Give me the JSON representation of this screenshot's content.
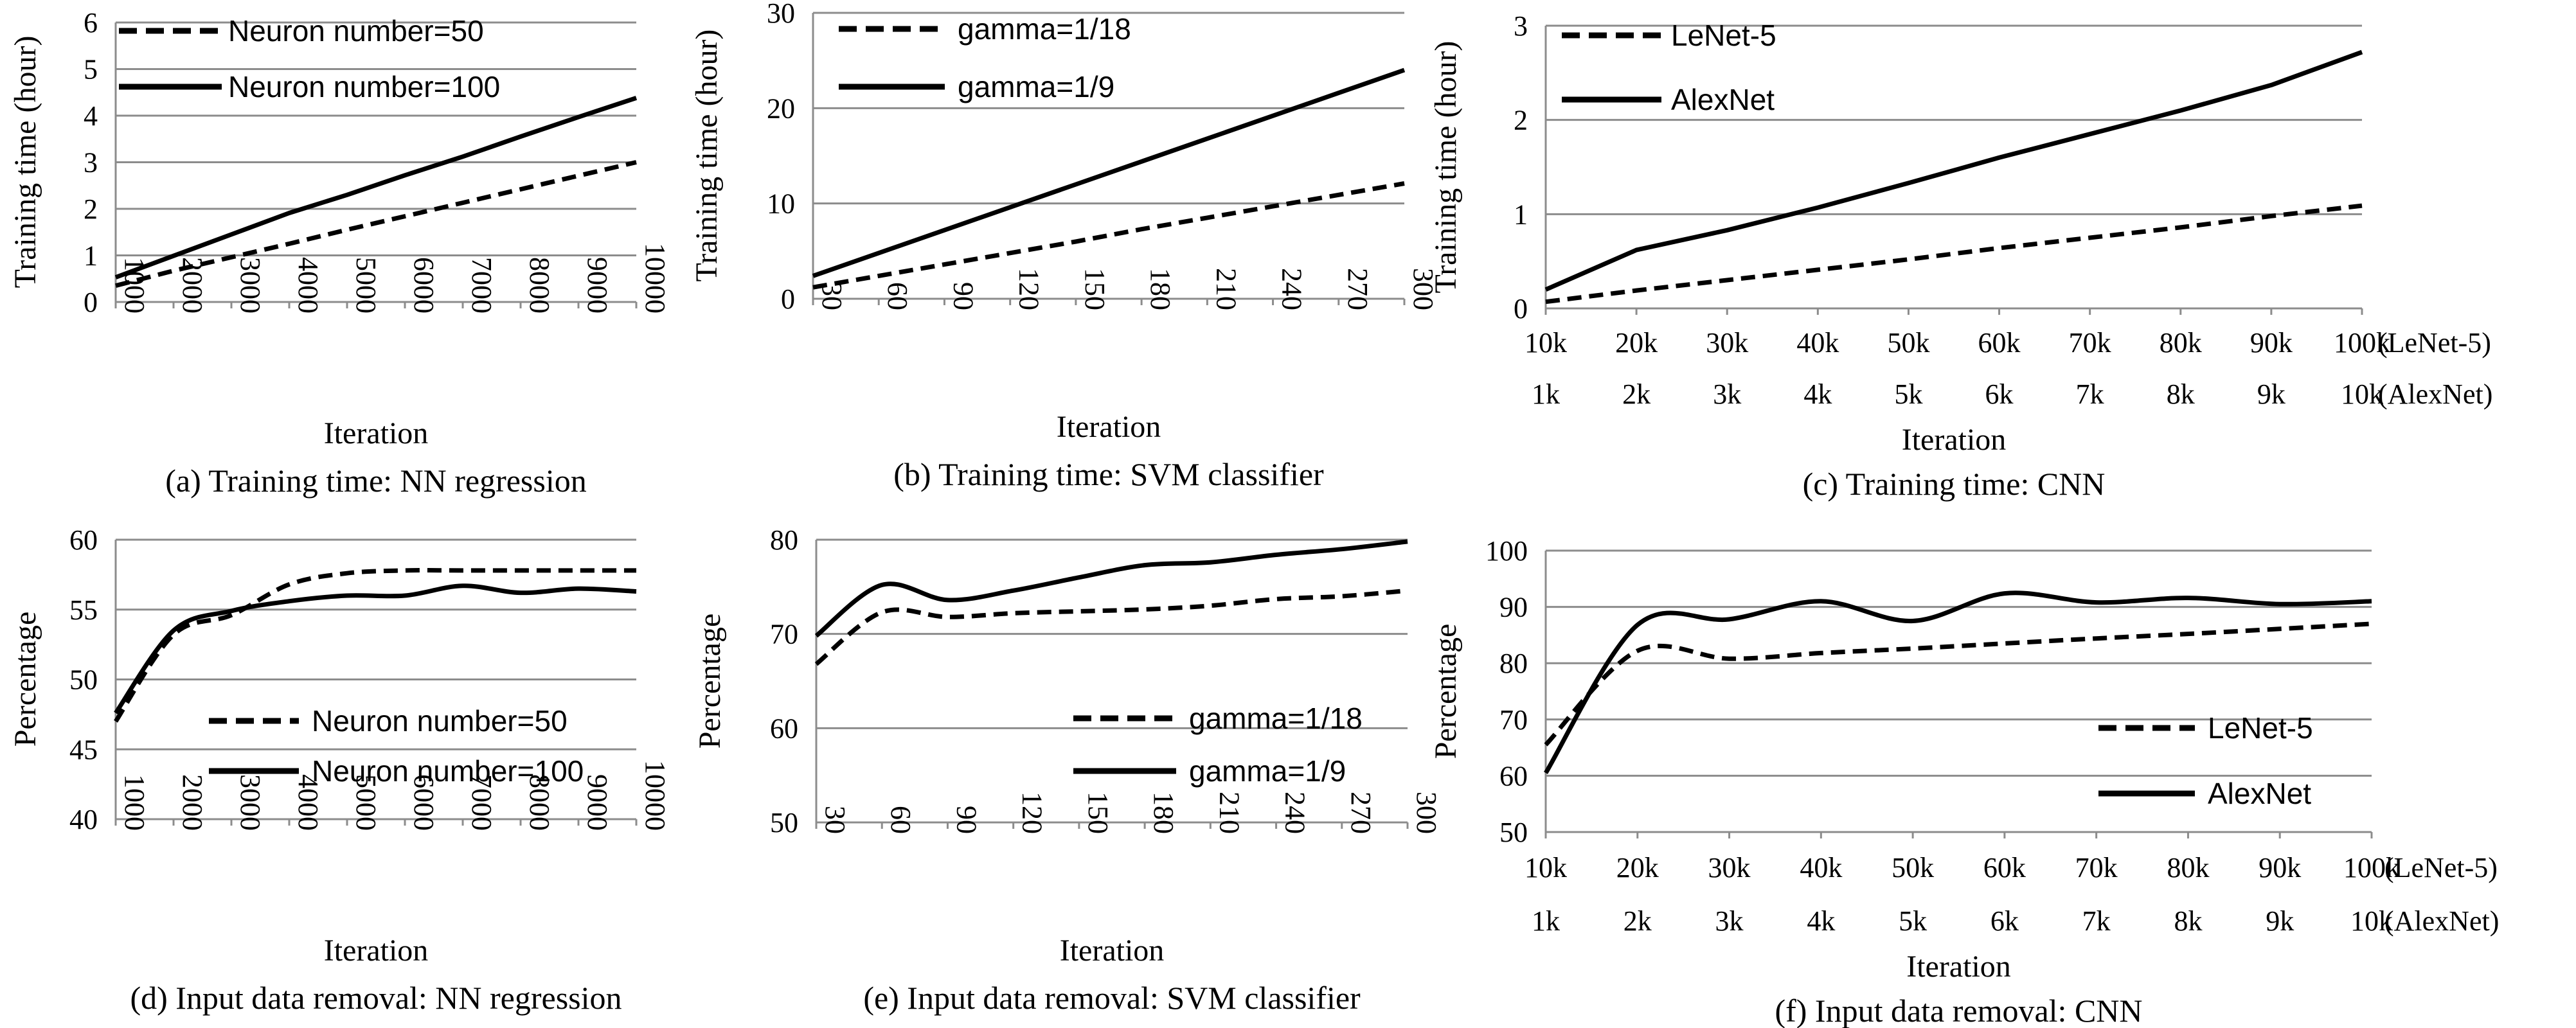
{
  "chart_data": [
    {
      "id": "a",
      "type": "line",
      "caption": "(a) Training time: NN regression",
      "xlabel": "Iteration",
      "ylabel": "Training time (hour)",
      "x_tick_labels": [
        "1000",
        "2000",
        "3000",
        "4000",
        "5000",
        "6000",
        "7000",
        "8000",
        "9000",
        "10000"
      ],
      "y_ticks": [
        0,
        1,
        2,
        3,
        4,
        5,
        6
      ],
      "ylim": [
        0,
        6
      ],
      "x_ticks_vertical": true,
      "grid": true,
      "legend": "top-left",
      "series": [
        {
          "name": "Neuron number=50",
          "style": "dashed",
          "smooth": false,
          "values": [
            0.35,
            0.67,
            0.96,
            1.25,
            1.55,
            1.84,
            2.13,
            2.42,
            2.71,
            3.0
          ]
        },
        {
          "name": "Neuron number=100",
          "style": "solid",
          "smooth": false,
          "values": [
            0.53,
            0.99,
            1.45,
            1.91,
            2.3,
            2.72,
            3.12,
            3.55,
            3.97,
            4.38
          ]
        }
      ]
    },
    {
      "id": "b",
      "type": "line",
      "caption": "(b) Training time: SVM classifier",
      "xlabel": "Iteration",
      "ylabel": "Training time (hour)",
      "x_tick_labels": [
        "30",
        "60",
        "90",
        "120",
        "150",
        "180",
        "210",
        "240",
        "270",
        "300"
      ],
      "y_ticks": [
        0,
        10,
        20,
        30
      ],
      "ylim": [
        0,
        30
      ],
      "x_ticks_vertical": true,
      "grid": true,
      "legend": "top-left",
      "series": [
        {
          "name": "gamma=1/18",
          "style": "dashed",
          "smooth": false,
          "values": [
            1.2,
            2.4,
            3.6,
            4.8,
            6.0,
            7.3,
            8.5,
            9.7,
            10.9,
            12.1
          ]
        },
        {
          "name": "gamma=1/9",
          "style": "solid",
          "smooth": false,
          "values": [
            2.4,
            4.8,
            7.2,
            9.6,
            12.0,
            14.4,
            16.8,
            19.2,
            21.6,
            24.0
          ]
        }
      ]
    },
    {
      "id": "c",
      "type": "line",
      "caption": "(c) Training time: CNN",
      "xlabel": "Iteration",
      "ylabel": "Training time (hour)",
      "x_tick_labels": [
        "10k",
        "20k",
        "30k",
        "40k",
        "50k",
        "60k",
        "70k",
        "80k",
        "90k",
        "100k"
      ],
      "x_tick_labels_2": [
        "1k",
        "2k",
        "3k",
        "4k",
        "5k",
        "6k",
        "7k",
        "8k",
        "9k",
        "10k"
      ],
      "x_row_label_1": "(LeNet-5)",
      "x_row_label_2": "(AlexNet)",
      "y_ticks": [
        0,
        1,
        2,
        3
      ],
      "ylim": [
        0,
        3
      ],
      "x_ticks_vertical": false,
      "grid": true,
      "legend": "top-left",
      "series": [
        {
          "name": "LeNet-5",
          "style": "dashed",
          "smooth": false,
          "values": [
            0.07,
            0.19,
            0.3,
            0.41,
            0.52,
            0.64,
            0.75,
            0.86,
            0.98,
            1.09
          ]
        },
        {
          "name": "AlexNet",
          "style": "solid",
          "smooth": false,
          "values": [
            0.2,
            0.62,
            0.83,
            1.07,
            1.33,
            1.6,
            1.85,
            2.1,
            2.37,
            2.72
          ]
        }
      ]
    },
    {
      "id": "d",
      "type": "line",
      "caption": "(d) Input data removal: NN regression",
      "xlabel": "Iteration",
      "ylabel": "Percentage",
      "x_tick_labels": [
        "1000",
        "2000",
        "3000",
        "4000",
        "5000",
        "6000",
        "7000",
        "8000",
        "9000",
        "10000"
      ],
      "y_ticks": [
        40,
        45,
        50,
        55,
        60
      ],
      "ylim": [
        40,
        60
      ],
      "x_ticks_vertical": true,
      "grid": true,
      "legend": "bottom-right",
      "series": [
        {
          "name": "Neuron number=50",
          "style": "dashed",
          "smooth": true,
          "values": [
            47.0,
            53.2,
            54.6,
            56.8,
            57.6,
            57.8,
            57.8,
            57.8,
            57.8,
            57.8
          ]
        },
        {
          "name": "Neuron number=100",
          "style": "solid",
          "smooth": true,
          "values": [
            47.6,
            53.5,
            54.9,
            55.6,
            56.0,
            56.0,
            56.7,
            56.2,
            56.5,
            56.3
          ]
        }
      ]
    },
    {
      "id": "e",
      "type": "line",
      "caption": "(e) Input data removal: SVM classifier",
      "xlabel": "Iteration",
      "ylabel": "Percentage",
      "x_tick_labels": [
        "30",
        "60",
        "90",
        "120",
        "150",
        "180",
        "210",
        "240",
        "270",
        "300"
      ],
      "y_ticks": [
        50,
        60,
        70,
        80
      ],
      "ylim": [
        50,
        80
      ],
      "x_ticks_vertical": true,
      "grid": true,
      "legend": "bottom-right",
      "series": [
        {
          "name": "gamma=1/18",
          "style": "dashed",
          "smooth": true,
          "values": [
            66.8,
            72.3,
            71.8,
            72.2,
            72.4,
            72.6,
            73.0,
            73.7,
            74.0,
            74.6
          ]
        },
        {
          "name": "gamma=1/9",
          "style": "solid",
          "smooth": true,
          "values": [
            69.8,
            75.2,
            73.6,
            74.6,
            76.0,
            77.3,
            77.6,
            78.4,
            79.0,
            79.8
          ]
        }
      ]
    },
    {
      "id": "f",
      "type": "line",
      "caption": "(f) Input data removal: CNN",
      "xlabel": "Iteration",
      "ylabel": "Percentage",
      "x_tick_labels": [
        "10k",
        "20k",
        "30k",
        "40k",
        "50k",
        "60k",
        "70k",
        "80k",
        "90k",
        "100k"
      ],
      "x_tick_labels_2": [
        "1k",
        "2k",
        "3k",
        "4k",
        "5k",
        "6k",
        "7k",
        "8k",
        "9k",
        "10k"
      ],
      "x_row_label_1": "(LeNet-5)",
      "x_row_label_2": "(AlexNet)",
      "y_ticks": [
        50,
        60,
        70,
        80,
        90,
        100
      ],
      "ylim": [
        50,
        100
      ],
      "x_ticks_vertical": false,
      "grid": true,
      "legend": "bottom-right",
      "series": [
        {
          "name": "LeNet-5",
          "style": "dashed",
          "smooth": true,
          "values": [
            65.5,
            82.2,
            80.8,
            81.8,
            82.6,
            83.5,
            84.4,
            85.2,
            86.1,
            87.0
          ]
        },
        {
          "name": "AlexNet",
          "style": "solid",
          "smooth": true,
          "values": [
            60.5,
            86.8,
            87.8,
            91.0,
            87.5,
            92.4,
            90.8,
            91.6,
            90.5,
            91.0
          ]
        }
      ]
    }
  ]
}
